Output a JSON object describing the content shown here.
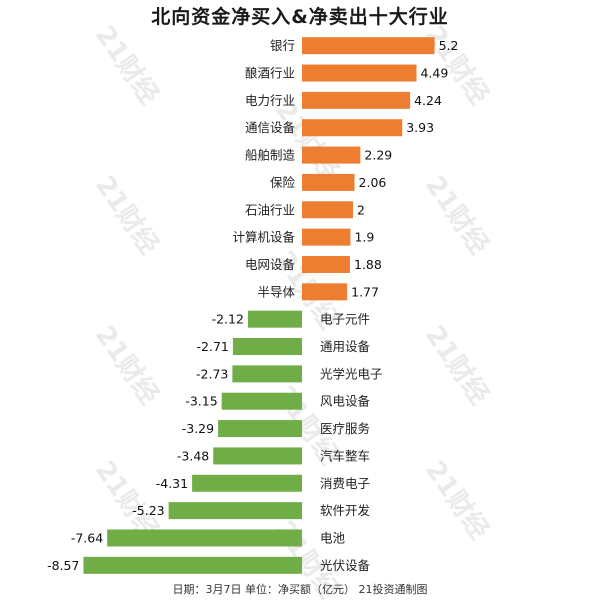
{
  "chart_data": {
    "type": "bar",
    "orientation": "horizontal",
    "title": "北向资金净买入&净卖出十大行业",
    "footer": "日期：3月7日 单位：净买额（亿元） 21投资通制图",
    "watermark": "21财经",
    "categories": [
      "银行",
      "酿酒行业",
      "电力行业",
      "通信设备",
      "船舶制造",
      "保险",
      "石油行业",
      "计算机设备",
      "电网设备",
      "半导体",
      "电子元件",
      "通用设备",
      "光学光电子",
      "风电设备",
      "医疗服务",
      "汽车整车",
      "消费电子",
      "软件开发",
      "电池",
      "光伏设备"
    ],
    "values": [
      5.2,
      4.49,
      4.24,
      3.93,
      2.29,
      2.06,
      2,
      1.9,
      1.88,
      1.77,
      -2.12,
      -2.71,
      -2.73,
      -3.15,
      -3.29,
      -3.48,
      -4.31,
      -5.23,
      -7.64,
      -8.57
    ],
    "value_labels": [
      "5.2",
      "4.49",
      "4.24",
      "3.93",
      "2.29",
      "2.06",
      "2",
      "1.9",
      "1.88",
      "1.77",
      "-2.12",
      "-2.71",
      "-2.73",
      "-3.15",
      "-3.29",
      "-3.48",
      "-4.31",
      "-5.23",
      "-7.64",
      "-8.57"
    ],
    "positive_color": "#ED7D31",
    "negative_color": "#70AD47",
    "grid": false,
    "legend": "none"
  }
}
